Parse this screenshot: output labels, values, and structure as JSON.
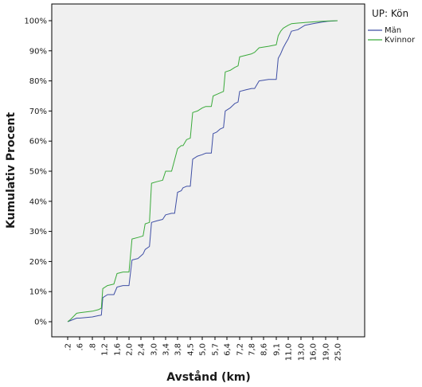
{
  "chart_data": {
    "type": "line",
    "xlabel": "Avstånd (km)",
    "ylabel": "Kumulativ Procent",
    "ylim": [
      0,
      100
    ],
    "y_ticks": [
      "0%",
      "10%",
      "20%",
      "30%",
      "40%",
      "50%",
      "60%",
      "70%",
      "80%",
      "90%",
      "100%"
    ],
    "x_tick_labels": [
      ".2",
      ".6",
      ".8",
      "1,2",
      "1,6",
      "2,0",
      "2,4",
      "3,0",
      "3,4",
      "3,8",
      "4,5",
      "5,0",
      "5,7",
      "6,4",
      "7,2",
      "7,8",
      "8,6",
      "9,1",
      "11,0",
      "13,0",
      "16,0",
      "19,0",
      "25,0"
    ],
    "grid": false,
    "legend_placement": "right",
    "legend_title": "UP: Kön",
    "colors": {
      "plot_background": "#f0f0f0",
      "Män": "#3f4fa5",
      "Kvinnor": "#3aaa3a"
    },
    "series": [
      {
        "name": "Män",
        "points": [
          [
            0.2,
            0
          ],
          [
            0.3,
            0.4
          ],
          [
            0.5,
            1.2
          ],
          [
            0.6,
            1.2
          ],
          [
            0.8,
            1.6
          ],
          [
            1.0,
            2.0
          ],
          [
            1.1,
            2.2
          ],
          [
            1.15,
            8.0
          ],
          [
            1.3,
            9.0
          ],
          [
            1.5,
            9.0
          ],
          [
            1.6,
            11.5
          ],
          [
            1.8,
            12.0
          ],
          [
            2.0,
            12.0
          ],
          [
            2.1,
            20.5
          ],
          [
            2.3,
            21.0
          ],
          [
            2.5,
            22.5
          ],
          [
            2.6,
            24.0
          ],
          [
            2.8,
            25.0
          ],
          [
            2.9,
            33.0
          ],
          [
            3.1,
            33.5
          ],
          [
            3.3,
            34.0
          ],
          [
            3.4,
            35.5
          ],
          [
            3.6,
            36.0
          ],
          [
            3.7,
            36.0
          ],
          [
            3.8,
            43.0
          ],
          [
            4.0,
            43.5
          ],
          [
            4.1,
            44.5
          ],
          [
            4.3,
            45.0
          ],
          [
            4.5,
            45.0
          ],
          [
            4.6,
            54.0
          ],
          [
            4.8,
            55.0
          ],
          [
            5.0,
            55.5
          ],
          [
            5.2,
            56.0
          ],
          [
            5.5,
            56.0
          ],
          [
            5.6,
            62.5
          ],
          [
            5.8,
            63.0
          ],
          [
            6.0,
            64.0
          ],
          [
            6.2,
            64.5
          ],
          [
            6.3,
            70.0
          ],
          [
            6.6,
            71.0
          ],
          [
            6.9,
            72.5
          ],
          [
            7.1,
            73.0
          ],
          [
            7.2,
            76.5
          ],
          [
            7.5,
            77.0
          ],
          [
            7.8,
            77.5
          ],
          [
            8.0,
            77.5
          ],
          [
            8.3,
            80.0
          ],
          [
            8.8,
            80.5
          ],
          [
            9.1,
            80.5
          ],
          [
            9.4,
            87.5
          ],
          [
            9.8,
            89.0
          ],
          [
            10.2,
            91.0
          ],
          [
            10.6,
            92.5
          ],
          [
            11.0,
            94.0
          ],
          [
            11.5,
            96.5
          ],
          [
            12.5,
            97.0
          ],
          [
            14.0,
            98.5
          ],
          [
            16.0,
            99.0
          ],
          [
            18.0,
            99.5
          ],
          [
            20.0,
            99.8
          ],
          [
            25.0,
            100
          ]
        ]
      },
      {
        "name": "Kvinnor",
        "points": [
          [
            0.2,
            0
          ],
          [
            0.3,
            0.8
          ],
          [
            0.5,
            2.8
          ],
          [
            0.6,
            3.0
          ],
          [
            0.8,
            3.5
          ],
          [
            1.0,
            4.0
          ],
          [
            1.1,
            4.5
          ],
          [
            1.15,
            11.0
          ],
          [
            1.3,
            12.0
          ],
          [
            1.5,
            12.5
          ],
          [
            1.6,
            16.0
          ],
          [
            1.8,
            16.5
          ],
          [
            2.0,
            16.5
          ],
          [
            2.1,
            27.5
          ],
          [
            2.3,
            28.0
          ],
          [
            2.5,
            28.5
          ],
          [
            2.6,
            32.5
          ],
          [
            2.8,
            33.0
          ],
          [
            2.9,
            46.0
          ],
          [
            3.1,
            46.5
          ],
          [
            3.3,
            47.0
          ],
          [
            3.4,
            50.0
          ],
          [
            3.6,
            50.0
          ],
          [
            3.8,
            57.5
          ],
          [
            4.0,
            58.5
          ],
          [
            4.1,
            58.5
          ],
          [
            4.3,
            60.5
          ],
          [
            4.5,
            61.0
          ],
          [
            4.6,
            69.5
          ],
          [
            4.8,
            70.0
          ],
          [
            5.0,
            71.0
          ],
          [
            5.2,
            71.5
          ],
          [
            5.5,
            71.5
          ],
          [
            5.6,
            75.0
          ],
          [
            5.8,
            75.5
          ],
          [
            6.0,
            76.0
          ],
          [
            6.2,
            76.5
          ],
          [
            6.3,
            83.0
          ],
          [
            6.6,
            83.5
          ],
          [
            6.9,
            84.5
          ],
          [
            7.1,
            85.0
          ],
          [
            7.2,
            88.0
          ],
          [
            7.5,
            88.5
          ],
          [
            7.8,
            89.0
          ],
          [
            8.0,
            89.5
          ],
          [
            8.3,
            91.0
          ],
          [
            8.8,
            91.5
          ],
          [
            9.1,
            92.0
          ],
          [
            9.4,
            95.0
          ],
          [
            9.8,
            96.5
          ],
          [
            10.2,
            97.5
          ],
          [
            10.6,
            98.0
          ],
          [
            11.0,
            98.5
          ],
          [
            11.5,
            99.0
          ],
          [
            12.5,
            99.2
          ],
          [
            14.0,
            99.4
          ],
          [
            16.0,
            99.6
          ],
          [
            18.0,
            99.8
          ],
          [
            20.0,
            99.9
          ],
          [
            25.0,
            100
          ]
        ]
      }
    ]
  }
}
